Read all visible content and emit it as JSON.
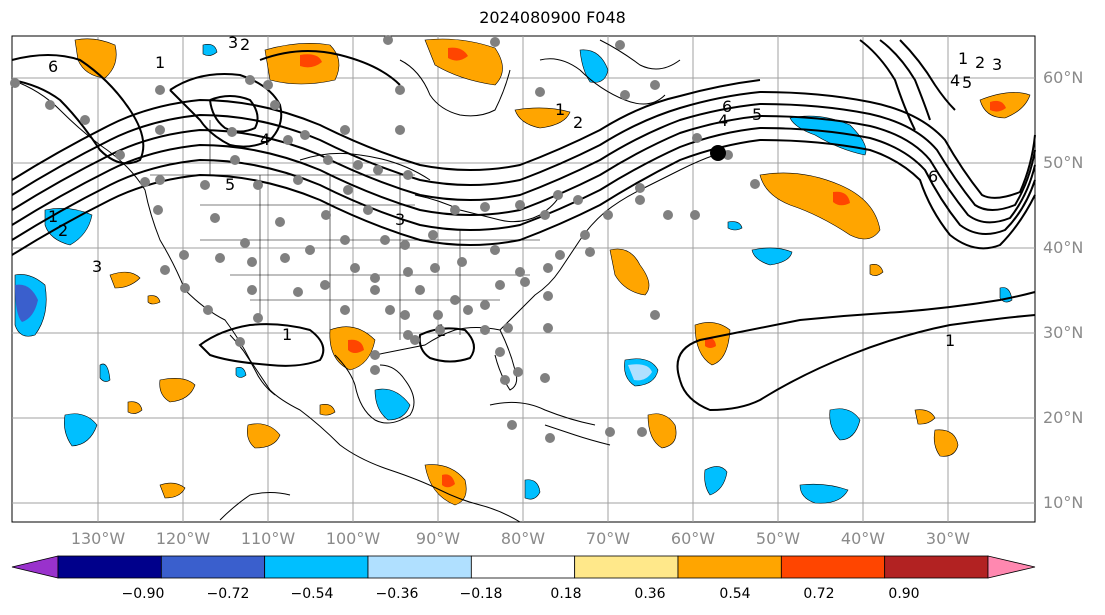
{
  "title": "2024080900 F048",
  "lon_labels": [
    "130°W",
    "120°W",
    "110°W",
    "100°W",
    "90°W",
    "80°W",
    "70°W",
    "60°W",
    "50°W",
    "40°W",
    "30°W"
  ],
  "lat_labels": [
    "60°N",
    "50°N",
    "40°N",
    "30°N",
    "20°N",
    "10°N"
  ],
  "colorbar": {
    "ticks": [
      "−0.90",
      "−0.72",
      "−0.54",
      "−0.36",
      "−0.18",
      "0.18",
      "0.36",
      "0.54",
      "0.72",
      "0.90"
    ],
    "colors": [
      "#9932cc",
      "#00008b",
      "#3a5fcd",
      "#00bfff",
      "#b0e0ff",
      "#ffffff",
      "#ffe88a",
      "#ffa500",
      "#ff4500",
      "#b22222",
      "#ff88b0"
    ]
  },
  "contour_labels": [
    "1",
    "2",
    "3",
    "4",
    "5",
    "6",
    "1",
    "2",
    "3",
    "4",
    "5",
    "6",
    "1",
    "2",
    "3",
    "4",
    "5",
    "6",
    "1",
    "1",
    "1",
    "2",
    "3",
    "1"
  ]
}
